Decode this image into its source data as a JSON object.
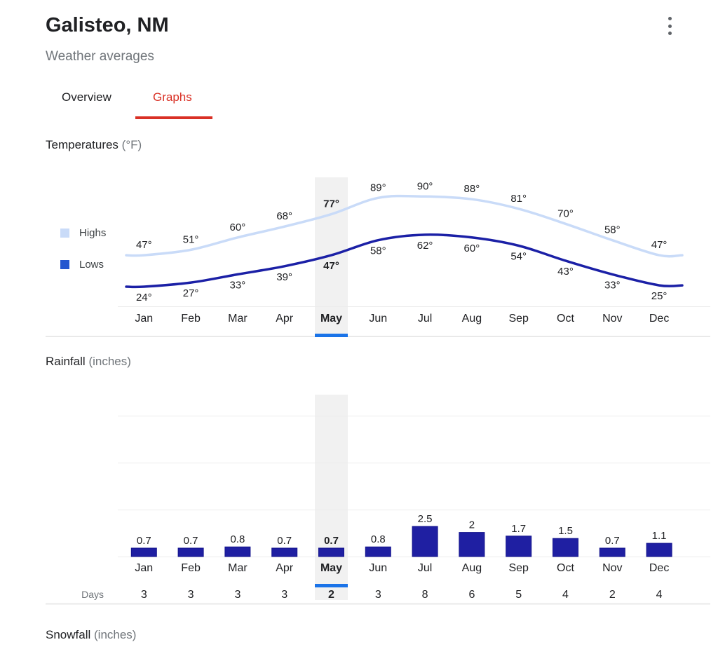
{
  "header": {
    "title": "Galisteo, NM",
    "subtitle": "Weather averages",
    "menu_icon": "kebab-menu"
  },
  "tabs": [
    {
      "label": "Overview",
      "active": false
    },
    {
      "label": "Graphs",
      "active": true
    }
  ],
  "colors": {
    "accent_red": "#d93025",
    "selected_blue": "#1a73e8",
    "text_dark": "#202124",
    "text_gray": "#70757a",
    "highlight_band": "#f1f1f1",
    "gridline": "#ececec",
    "separator": "#e9e9e9",
    "bar_fill": "#1f1fa2",
    "bar_stroke": "#13138c",
    "kebab_gray": "#5f6368"
  },
  "sections": {
    "temperatures": {
      "title": "Temperatures",
      "unit": "(°F)"
    },
    "rainfall": {
      "title": "Rainfall",
      "unit": "(inches)"
    },
    "snowfall": {
      "title": "Snowfall",
      "unit": "(inches)"
    }
  },
  "chart_data": [
    {
      "type": "line",
      "title": "Temperatures (°F)",
      "categories": [
        "Jan",
        "Feb",
        "Mar",
        "Apr",
        "May",
        "Jun",
        "Jul",
        "Aug",
        "Sep",
        "Oct",
        "Nov",
        "Dec"
      ],
      "series": [
        {
          "name": "Highs",
          "values": [
            47,
            51,
            60,
            68,
            77,
            89,
            90,
            88,
            81,
            70,
            58,
            47
          ],
          "color": "#c9dbf8",
          "legend_color": "#c9dbf8"
        },
        {
          "name": "Lows",
          "values": [
            24,
            27,
            33,
            39,
            47,
            58,
            62,
            60,
            54,
            43,
            33,
            25
          ],
          "color": "#1b20a6",
          "legend_color": "#2456cf"
        }
      ],
      "unit_suffix": "°",
      "selected_category": "May",
      "legend_position": "left",
      "grid": false,
      "ylim": [
        20,
        95
      ]
    },
    {
      "type": "bar",
      "title": "Rainfall (inches)",
      "categories": [
        "Jan",
        "Feb",
        "Mar",
        "Apr",
        "May",
        "Jun",
        "Jul",
        "Aug",
        "Sep",
        "Oct",
        "Nov",
        "Dec"
      ],
      "values": [
        0.7,
        0.7,
        0.8,
        0.7,
        0.7,
        0.8,
        2.5,
        2,
        1.7,
        1.5,
        0.7,
        1.1
      ],
      "days_label": "Days",
      "days": [
        3,
        3,
        3,
        3,
        2,
        3,
        8,
        6,
        5,
        4,
        2,
        4
      ],
      "selected_category": "May",
      "grid": true,
      "ylim": [
        0,
        3
      ]
    }
  ]
}
